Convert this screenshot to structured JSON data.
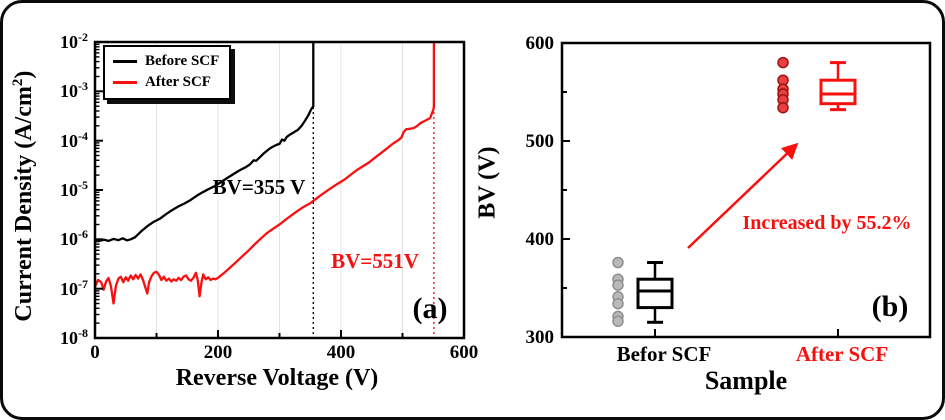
{
  "window": {
    "background": "#ffffff",
    "frame_color": "#0a0a0a",
    "accent_red": "#fa0f0f",
    "grid_color": "#e4e4e4"
  },
  "chart_data": [
    {
      "id": "a",
      "type": "line",
      "panel_label": "(a)",
      "xlabel": "Reverse Voltage (V)",
      "ylabel_pre": "Current Density (A/cm",
      "ylabel_sup": "2",
      "ylabel_post": ")",
      "xlim": [
        0,
        600
      ],
      "x_major_ticks": [
        0,
        200,
        400,
        600
      ],
      "x_minor_ticks": [
        100,
        300,
        500
      ],
      "grid_x": [
        100,
        200,
        300,
        400,
        500
      ],
      "y_scale": "log",
      "y_tick_base": "10",
      "y_exp_range": [
        -2,
        -8
      ],
      "y_tick_exponents": [
        -2,
        -3,
        -4,
        -5,
        -6,
        -7,
        -8
      ],
      "legend_position": "top-left",
      "breakdowns": [
        {
          "label": "BV=355 V",
          "voltage": 355,
          "color": "#000000"
        },
        {
          "label": "BV=551V",
          "voltage": 551,
          "color": "#fa0f0f"
        }
      ],
      "series": [
        {
          "name": "Before SCF",
          "color": "#000000",
          "points": [
            [
              0,
              1e-06
            ],
            [
              8,
              9.4e-07
            ],
            [
              15,
              9.8e-07
            ],
            [
              22,
              9.3e-07
            ],
            [
              30,
              1.02e-06
            ],
            [
              38,
              9.6e-07
            ],
            [
              45,
              1.05e-06
            ],
            [
              52,
              9.5e-07
            ],
            [
              58,
              1e-06
            ],
            [
              65,
              1.1e-06
            ],
            [
              75,
              1.45e-06
            ],
            [
              85,
              1.85e-06
            ],
            [
              95,
              2.25e-06
            ],
            [
              105,
              2.6e-06
            ],
            [
              115,
              3.2e-06
            ],
            [
              125,
              3.9e-06
            ],
            [
              135,
              4.6e-06
            ],
            [
              145,
              5.3e-06
            ],
            [
              155,
              6.2e-06
            ],
            [
              165,
              7.6e-06
            ],
            [
              175,
              9e-06
            ],
            [
              185,
              1.05e-05
            ],
            [
              195,
              1.2e-05
            ],
            [
              205,
              1.45e-05
            ],
            [
              215,
              1.75e-05
            ],
            [
              225,
              2.1e-05
            ],
            [
              235,
              2.5e-05
            ],
            [
              245,
              2.9e-05
            ],
            [
              252,
              3.3e-05
            ],
            [
              258,
              4e-05
            ],
            [
              262,
              3.9e-05
            ],
            [
              268,
              4.6e-05
            ],
            [
              275,
              5.6e-05
            ],
            [
              282,
              6.6e-05
            ],
            [
              288,
              7.4e-05
            ],
            [
              295,
              8.2e-05
            ],
            [
              300,
              8.6e-05
            ],
            [
              304,
              0.000105
            ],
            [
              308,
              0.0001
            ],
            [
              312,
              0.00012
            ],
            [
              318,
              0.000135
            ],
            [
              324,
              0.00015
            ],
            [
              330,
              0.000165
            ],
            [
              336,
              0.0002
            ],
            [
              342,
              0.00026
            ],
            [
              347,
              0.00033
            ],
            [
              351,
              0.00042
            ],
            [
              354,
              0.00048
            ],
            [
              355,
              0.0005
            ],
            [
              355,
              0.01
            ]
          ]
        },
        {
          "name": "After SCF",
          "color": "#fa0f0f",
          "points": [
            [
              0,
              1.1e-07
            ],
            [
              5,
              1.5e-07
            ],
            [
              10,
              1.35e-07
            ],
            [
              14,
              9.5e-08
            ],
            [
              18,
              1.4e-07
            ],
            [
              22,
              1.65e-07
            ],
            [
              26,
              1.1e-07
            ],
            [
              30,
              5e-08
            ],
            [
              34,
              1.15e-07
            ],
            [
              38,
              1.6e-07
            ],
            [
              42,
              1.75e-07
            ],
            [
              46,
              1.35e-07
            ],
            [
              50,
              1.7e-07
            ],
            [
              54,
              1.45e-07
            ],
            [
              58,
              1.85e-07
            ],
            [
              62,
              1.55e-07
            ],
            [
              66,
              1.9e-07
            ],
            [
              70,
              1.6e-07
            ],
            [
              74,
              1.95e-07
            ],
            [
              78,
              1.5e-07
            ],
            [
              82,
              1.05e-07
            ],
            [
              85,
              8e-08
            ],
            [
              88,
              1.35e-07
            ],
            [
              92,
              1.8e-07
            ],
            [
              96,
              2.1e-07
            ],
            [
              100,
              2.2e-07
            ],
            [
              104,
              1.9e-07
            ],
            [
              108,
              1.5e-07
            ],
            [
              112,
              1.75e-07
            ],
            [
              116,
              1.45e-07
            ],
            [
              120,
              1.6e-07
            ],
            [
              124,
              1.4e-07
            ],
            [
              128,
              1.55e-07
            ],
            [
              132,
              1.45e-07
            ],
            [
              136,
              1.65e-07
            ],
            [
              140,
              1.5e-07
            ],
            [
              144,
              1.75e-07
            ],
            [
              148,
              1.85e-07
            ],
            [
              152,
              1.55e-07
            ],
            [
              156,
              1.45e-07
            ],
            [
              160,
              1.65e-07
            ],
            [
              164,
              2.1e-07
            ],
            [
              167,
              1.5e-07
            ],
            [
              170,
              7e-08
            ],
            [
              173,
              1.3e-07
            ],
            [
              176,
              1.95e-07
            ],
            [
              180,
              1.55e-07
            ],
            [
              184,
              1.7e-07
            ],
            [
              188,
              1.5e-07
            ],
            [
              192,
              1.6e-07
            ],
            [
              196,
              1.55e-07
            ],
            [
              200,
              1.65e-07
            ],
            [
              210,
              2.1e-07
            ],
            [
              220,
              2.7e-07
            ],
            [
              230,
              3.5e-07
            ],
            [
              240,
              4.6e-07
            ],
            [
              250,
              6e-07
            ],
            [
              260,
              8e-07
            ],
            [
              270,
              1.05e-06
            ],
            [
              280,
              1.35e-06
            ],
            [
              290,
              1.65e-06
            ],
            [
              300,
              2e-06
            ],
            [
              310,
              2.5e-06
            ],
            [
              320,
              3.1e-06
            ],
            [
              330,
              3.8e-06
            ],
            [
              340,
              4.6e-06
            ],
            [
              350,
              5.4e-06
            ],
            [
              355,
              6e-06
            ],
            [
              365,
              7.5e-06
            ],
            [
              375,
              9.2e-06
            ],
            [
              385,
              1.12e-05
            ],
            [
              395,
              1.35e-05
            ],
            [
              405,
              1.6e-05
            ],
            [
              415,
              2e-05
            ],
            [
              425,
              2.5e-05
            ],
            [
              435,
              3e-05
            ],
            [
              445,
              3.6e-05
            ],
            [
              455,
              4.5e-05
            ],
            [
              465,
              5.6e-05
            ],
            [
              475,
              7e-05
            ],
            [
              485,
              8.8e-05
            ],
            [
              492,
              0.0001
            ],
            [
              498,
              0.000115
            ],
            [
              502,
              0.00015
            ],
            [
              506,
              0.00017
            ],
            [
              512,
              0.000175
            ],
            [
              518,
              0.00018
            ],
            [
              524,
              0.0002
            ],
            [
              530,
              0.00023
            ],
            [
              536,
              0.00025
            ],
            [
              541,
              0.00027
            ],
            [
              545,
              0.00029
            ],
            [
              548,
              0.00036
            ],
            [
              550,
              0.00042
            ],
            [
              551,
              0.0005
            ],
            [
              551,
              0.01
            ]
          ]
        }
      ]
    },
    {
      "id": "b",
      "type": "box",
      "panel_label": "(b)",
      "xlabel": "Sample",
      "ylabel": "BV (V)",
      "ylim": [
        300,
        600
      ],
      "y_major_ticks": [
        300,
        400,
        500,
        600
      ],
      "y_minor_ticks": [
        350,
        450,
        550
      ],
      "annotation": {
        "text": "Increased by 55.2%",
        "color": "#fa0f0f"
      },
      "groups": [
        {
          "label": "Befor SCF",
          "label_color": "#000000",
          "box_color": "#000000",
          "point_fill": "#b9b9b9",
          "point_edge": "#8f8f8f",
          "scatter": [
            376,
            359,
            353,
            341,
            334,
            321,
            316
          ],
          "box": {
            "low": 315,
            "q1": 330,
            "median": 347,
            "q3": 359,
            "high": 376
          }
        },
        {
          "label": "After SCF",
          "label_color": "#fa0f0f",
          "box_color": "#fa0f0f",
          "point_fill": "#e84040",
          "point_edge": "#a01010",
          "scatter": [
            580,
            562,
            553,
            548,
            542,
            534
          ],
          "box": {
            "low": 532,
            "q1": 538,
            "median": 548,
            "q3": 562,
            "high": 580
          }
        }
      ]
    }
  ]
}
